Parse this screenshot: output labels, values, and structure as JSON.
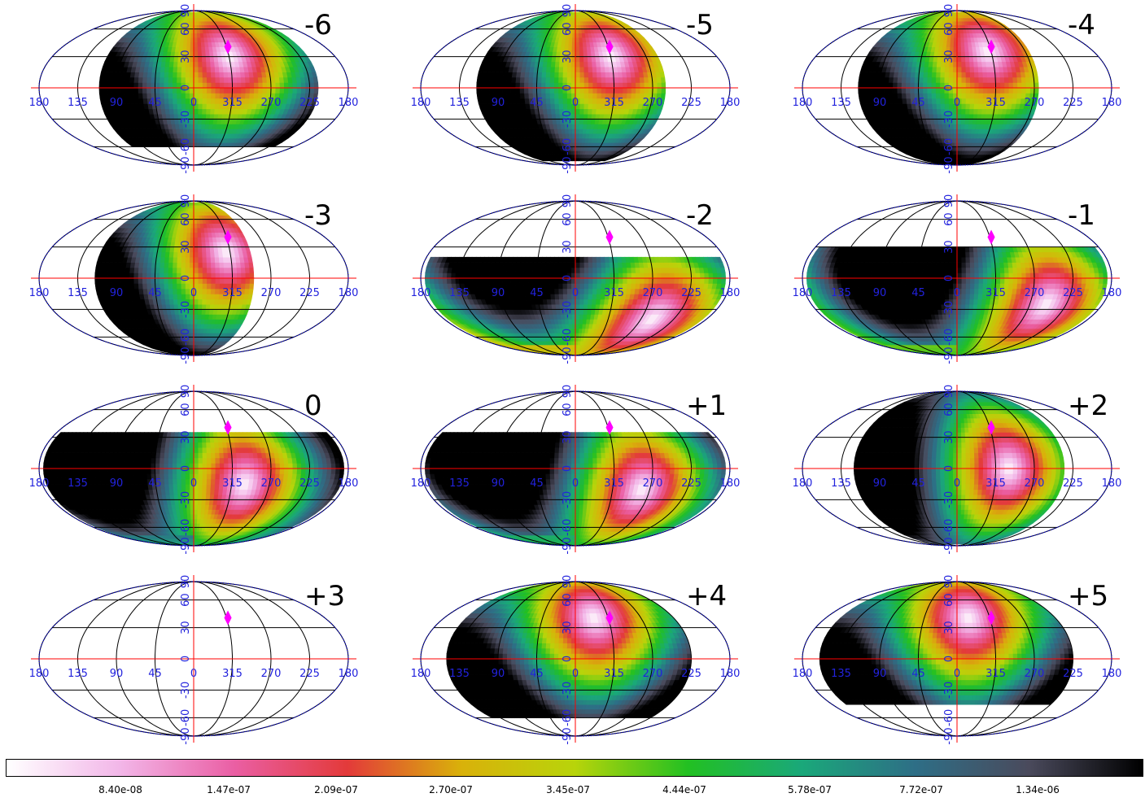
{
  "chart_data": {
    "type": "heatmap",
    "projection": "mollweide",
    "layout": "4x3 grid of all-sky maps",
    "panels": [
      {
        "label": "-6",
        "hot_lon": 315,
        "hot_lat": 30,
        "lon_west": 110,
        "lon_east": 215,
        "lat_min": -60,
        "lat_max": 85
      },
      {
        "label": "-5",
        "hot_lon": 315,
        "hot_lat": 30,
        "lon_west": 115,
        "lon_east": 255,
        "lat_min": -80,
        "lat_max": 85
      },
      {
        "label": "-4",
        "hot_lon": 320,
        "hot_lat": 35,
        "lon_west": 115,
        "lon_east": 265,
        "lat_min": -90,
        "lat_max": 85
      },
      {
        "label": "-3",
        "hot_lon": 320,
        "hot_lat": 25,
        "lon_west": 115,
        "lon_east": 290,
        "lat_min": -90,
        "lat_max": 85
      },
      {
        "label": "-2",
        "hot_lon": 255,
        "hot_lat": -40,
        "lon_west": 180,
        "lon_east": 185,
        "lat_min": -90,
        "lat_max": 20
      },
      {
        "label": "-1",
        "hot_lon": 250,
        "hot_lat": -25,
        "lon_west": 180,
        "lon_east": 185,
        "lat_min": -90,
        "lat_max": 30
      },
      {
        "label": "0",
        "hot_lon": 300,
        "hot_lat": -15,
        "lon_west": 180,
        "lon_east": 185,
        "lat_min": -90,
        "lat_max": 35
      },
      {
        "label": "+1",
        "hot_lon": 280,
        "hot_lat": -20,
        "lon_west": 180,
        "lon_east": 185,
        "lat_min": -90,
        "lat_max": 35
      },
      {
        "label": "+2",
        "hot_lon": 300,
        "hot_lat": 0,
        "lon_west": 120,
        "lon_east": 235,
        "lat_min": -85,
        "lat_max": 90
      },
      {
        "label": "+3",
        "empty": true
      },
      {
        "label": "+4",
        "hot_lon": 335,
        "hot_lat": 40,
        "lon_west": 150,
        "lon_east": 225,
        "lat_min": -60,
        "lat_max": 90
      },
      {
        "label": "+5",
        "hot_lon": 345,
        "hot_lat": 40,
        "lon_west": 160,
        "lon_east": 225,
        "lat_min": -45,
        "lat_max": 90
      }
    ],
    "marker": {
      "lon": 313,
      "lat": 40,
      "color": "#ff00ff"
    },
    "axis_ticks": {
      "longitude": [
        "180",
        "135",
        "90",
        "45",
        "0",
        "315",
        "270",
        "225",
        "180"
      ],
      "latitude": [
        "-90",
        "-60",
        "-30",
        "0",
        "30",
        "60",
        "90"
      ]
    },
    "colorbar": {
      "tick_labels": [
        "8.40e-08",
        "1.47e-07",
        "2.09e-07",
        "2.70e-07",
        "3.45e-07",
        "4.44e-07",
        "5.78e-07",
        "7.72e-07",
        "1.34e-06"
      ],
      "scale": "log"
    },
    "colors": {
      "grid": "#000000",
      "equator_meridian": "#ff0000",
      "outline": "#0000cc",
      "tick_text": "#2222dd",
      "marker": "#ff00ff",
      "colormap": [
        "#ffffff",
        "#f2b6e8",
        "#ea5fa4",
        "#e33a3a",
        "#d9b10a",
        "#b8d40a",
        "#22c022",
        "#1aa87a",
        "#2e6e86",
        "#4a4a5c",
        "#000000"
      ]
    }
  }
}
